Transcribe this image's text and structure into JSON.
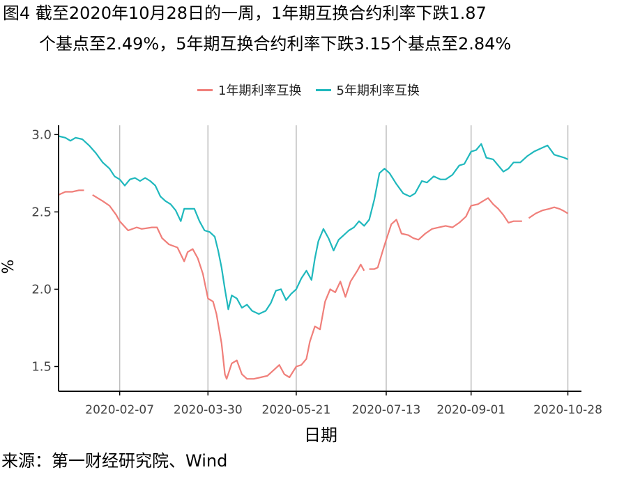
{
  "title": {
    "line1": "图4  截至2020年10月28日的一周，1年期互换合约利率下跌1.87",
    "line2": "个基点至2.49%，5年期互换合约利率下跌3.15个基点至2.84%"
  },
  "source": "来源：第一财经研究院、Wind",
  "colors": {
    "series1": "#F07F7A",
    "series2": "#1FB8BD",
    "grid": "#BEBEBE",
    "axis": "#000000"
  },
  "chart_data": {
    "type": "line",
    "xlabel": "日期",
    "ylabel": "%",
    "ylim": [
      1.34,
      3.06
    ],
    "yticks": [
      1.5,
      2.0,
      2.5,
      3.0
    ],
    "ytick_labels": [
      "1.5",
      "2.0",
      "2.5",
      "3.0"
    ],
    "xlim": [
      "2020-01-02",
      "2020-11-05"
    ],
    "xticks": [
      "2020-02-07",
      "2020-03-30",
      "2020-05-21",
      "2020-07-13",
      "2020-09-01",
      "2020-10-28"
    ],
    "grid": "vertical",
    "legend_position": "top",
    "series": [
      {
        "name": "1年期利率互换",
        "points": [
          [
            "2020-01-02",
            2.61
          ],
          [
            "2020-01-06",
            2.63
          ],
          [
            "2020-01-10",
            2.63
          ],
          [
            "2020-01-14",
            2.64
          ],
          [
            "2020-01-17",
            2.64
          ],
          [
            null,
            null
          ],
          [
            "2020-01-22",
            2.61
          ],
          [
            "2020-01-28",
            2.57
          ],
          [
            "2020-02-01",
            2.54
          ],
          [
            "2020-02-05",
            2.48
          ],
          [
            "2020-02-07",
            2.44
          ],
          [
            "2020-02-12",
            2.38
          ],
          [
            "2020-02-17",
            2.4
          ],
          [
            "2020-02-20",
            2.39
          ],
          [
            "2020-02-26",
            2.4
          ],
          [
            "2020-02-29",
            2.4
          ],
          [
            "2020-03-03",
            2.33
          ],
          [
            "2020-03-07",
            2.29
          ],
          [
            "2020-03-12",
            2.27
          ],
          [
            "2020-03-16",
            2.18
          ],
          [
            "2020-03-18",
            2.24
          ],
          [
            "2020-03-21",
            2.26
          ],
          [
            "2020-03-24",
            2.2
          ],
          [
            "2020-03-27",
            2.1
          ],
          [
            "2020-03-30",
            1.94
          ],
          [
            "2020-04-02",
            1.92
          ],
          [
            "2020-04-04",
            1.84
          ],
          [
            "2020-04-07",
            1.65
          ],
          [
            "2020-04-09",
            1.45
          ],
          [
            "2020-04-10",
            1.42
          ],
          [
            "2020-04-13",
            1.52
          ],
          [
            "2020-04-16",
            1.54
          ],
          [
            "2020-04-19",
            1.45
          ],
          [
            "2020-04-22",
            1.42
          ],
          [
            "2020-04-26",
            1.42
          ],
          [
            "2020-04-30",
            1.43
          ],
          [
            "2020-05-04",
            1.44
          ],
          [
            "2020-05-08",
            1.48
          ],
          [
            "2020-05-11",
            1.51
          ],
          [
            "2020-05-14",
            1.45
          ],
          [
            "2020-05-17",
            1.43
          ],
          [
            "2020-05-21",
            1.5
          ],
          [
            "2020-05-24",
            1.51
          ],
          [
            "2020-05-27",
            1.55
          ],
          [
            "2020-05-29",
            1.66
          ],
          [
            "2020-06-01",
            1.76
          ],
          [
            "2020-06-04",
            1.74
          ],
          [
            "2020-06-07",
            1.92
          ],
          [
            "2020-06-10",
            2.0
          ],
          [
            "2020-06-13",
            1.98
          ],
          [
            "2020-06-16",
            2.05
          ],
          [
            "2020-06-19",
            1.95
          ],
          [
            "2020-06-22",
            2.05
          ],
          [
            "2020-06-26",
            2.12
          ],
          [
            "2020-06-28",
            2.16
          ],
          [
            "2020-06-30",
            2.12
          ],
          [
            null,
            null
          ],
          [
            "2020-07-03",
            2.13
          ],
          [
            "2020-07-06",
            2.13
          ],
          [
            "2020-07-08",
            2.14
          ],
          [
            "2020-07-11",
            2.25
          ],
          [
            "2020-07-13",
            2.32
          ],
          [
            "2020-07-16",
            2.42
          ],
          [
            "2020-07-19",
            2.45
          ],
          [
            "2020-07-22",
            2.36
          ],
          [
            "2020-07-26",
            2.35
          ],
          [
            "2020-07-29",
            2.33
          ],
          [
            "2020-08-01",
            2.32
          ],
          [
            "2020-08-05",
            2.36
          ],
          [
            "2020-08-09",
            2.39
          ],
          [
            "2020-08-13",
            2.4
          ],
          [
            "2020-08-17",
            2.41
          ],
          [
            "2020-08-21",
            2.4
          ],
          [
            "2020-08-25",
            2.43
          ],
          [
            "2020-08-29",
            2.47
          ],
          [
            "2020-09-01",
            2.54
          ],
          [
            "2020-09-05",
            2.55
          ],
          [
            "2020-09-08",
            2.57
          ],
          [
            "2020-09-11",
            2.59
          ],
          [
            "2020-09-14",
            2.55
          ],
          [
            "2020-09-17",
            2.52
          ],
          [
            "2020-09-20",
            2.48
          ],
          [
            "2020-09-23",
            2.43
          ],
          [
            "2020-09-26",
            2.44
          ],
          [
            "2020-09-29",
            2.44
          ],
          [
            "2020-10-01",
            2.44
          ],
          [
            null,
            null
          ],
          [
            "2020-10-05",
            2.46
          ],
          [
            "2020-10-09",
            2.49
          ],
          [
            "2020-10-13",
            2.51
          ],
          [
            "2020-10-17",
            2.52
          ],
          [
            "2020-10-20",
            2.53
          ],
          [
            "2020-10-23",
            2.52
          ],
          [
            "2020-10-25",
            2.51
          ],
          [
            "2020-10-28",
            2.49
          ]
        ]
      },
      {
        "name": "5年期利率互换",
        "points": [
          [
            "2020-01-02",
            2.99
          ],
          [
            "2020-01-06",
            2.98
          ],
          [
            "2020-01-09",
            2.96
          ],
          [
            "2020-01-12",
            2.98
          ],
          [
            "2020-01-16",
            2.97
          ],
          [
            "2020-01-20",
            2.93
          ],
          [
            "2020-01-24",
            2.88
          ],
          [
            "2020-01-28",
            2.82
          ],
          [
            "2020-02-01",
            2.78
          ],
          [
            "2020-02-04",
            2.73
          ],
          [
            "2020-02-07",
            2.71
          ],
          [
            "2020-02-10",
            2.67
          ],
          [
            "2020-02-13",
            2.71
          ],
          [
            "2020-02-16",
            2.72
          ],
          [
            "2020-02-19",
            2.7
          ],
          [
            "2020-02-22",
            2.72
          ],
          [
            "2020-02-25",
            2.7
          ],
          [
            "2020-02-28",
            2.67
          ],
          [
            "2020-03-02",
            2.6
          ],
          [
            "2020-03-05",
            2.57
          ],
          [
            "2020-03-08",
            2.55
          ],
          [
            "2020-03-11",
            2.51
          ],
          [
            "2020-03-14",
            2.44
          ],
          [
            "2020-03-16",
            2.52
          ],
          [
            "2020-03-19",
            2.52
          ],
          [
            "2020-03-22",
            2.52
          ],
          [
            "2020-03-25",
            2.44
          ],
          [
            "2020-03-28",
            2.38
          ],
          [
            "2020-03-31",
            2.37
          ],
          [
            "2020-04-03",
            2.34
          ],
          [
            "2020-04-05",
            2.25
          ],
          [
            "2020-04-07",
            2.14
          ],
          [
            "2020-04-09",
            2.0
          ],
          [
            "2020-04-11",
            1.87
          ],
          [
            "2020-04-13",
            1.96
          ],
          [
            "2020-04-16",
            1.94
          ],
          [
            "2020-04-19",
            1.88
          ],
          [
            "2020-04-22",
            1.9
          ],
          [
            "2020-04-25",
            1.86
          ],
          [
            "2020-04-29",
            1.84
          ],
          [
            "2020-05-03",
            1.86
          ],
          [
            "2020-05-06",
            1.91
          ],
          [
            "2020-05-09",
            1.99
          ],
          [
            "2020-05-12",
            2.0
          ],
          [
            "2020-05-15",
            1.93
          ],
          [
            "2020-05-18",
            1.97
          ],
          [
            "2020-05-21",
            2.0
          ],
          [
            "2020-05-24",
            2.07
          ],
          [
            "2020-05-27",
            2.12
          ],
          [
            "2020-05-30",
            2.06
          ],
          [
            "2020-06-01",
            2.2
          ],
          [
            "2020-06-03",
            2.31
          ],
          [
            "2020-06-06",
            2.39
          ],
          [
            "2020-06-09",
            2.33
          ],
          [
            "2020-06-12",
            2.25
          ],
          [
            "2020-06-15",
            2.32
          ],
          [
            "2020-06-18",
            2.35
          ],
          [
            "2020-06-21",
            2.38
          ],
          [
            "2020-06-24",
            2.4
          ],
          [
            "2020-06-27",
            2.44
          ],
          [
            "2020-06-30",
            2.41
          ],
          [
            "2020-07-03",
            2.45
          ],
          [
            "2020-07-06",
            2.58
          ],
          [
            "2020-07-09",
            2.75
          ],
          [
            "2020-07-12",
            2.78
          ],
          [
            "2020-07-15",
            2.75
          ],
          [
            "2020-07-19",
            2.68
          ],
          [
            "2020-07-23",
            2.62
          ],
          [
            "2020-07-27",
            2.6
          ],
          [
            "2020-07-30",
            2.62
          ],
          [
            "2020-08-03",
            2.7
          ],
          [
            "2020-08-06",
            2.69
          ],
          [
            "2020-08-10",
            2.73
          ],
          [
            "2020-08-14",
            2.71
          ],
          [
            "2020-08-17",
            2.71
          ],
          [
            "2020-08-21",
            2.74
          ],
          [
            "2020-08-25",
            2.8
          ],
          [
            "2020-08-28",
            2.81
          ],
          [
            "2020-09-01",
            2.89
          ],
          [
            "2020-09-04",
            2.9
          ],
          [
            "2020-09-07",
            2.94
          ],
          [
            "2020-09-10",
            2.85
          ],
          [
            "2020-09-14",
            2.84
          ],
          [
            "2020-09-17",
            2.8
          ],
          [
            "2020-09-20",
            2.76
          ],
          [
            "2020-09-23",
            2.78
          ],
          [
            "2020-09-26",
            2.82
          ],
          [
            "2020-09-30",
            2.82
          ],
          [
            "2020-10-04",
            2.86
          ],
          [
            "2020-10-08",
            2.89
          ],
          [
            "2020-10-12",
            2.91
          ],
          [
            "2020-10-16",
            2.93
          ],
          [
            "2020-10-20",
            2.87
          ],
          [
            "2020-10-23",
            2.86
          ],
          [
            "2020-10-26",
            2.85
          ],
          [
            "2020-10-28",
            2.84
          ]
        ]
      }
    ]
  }
}
